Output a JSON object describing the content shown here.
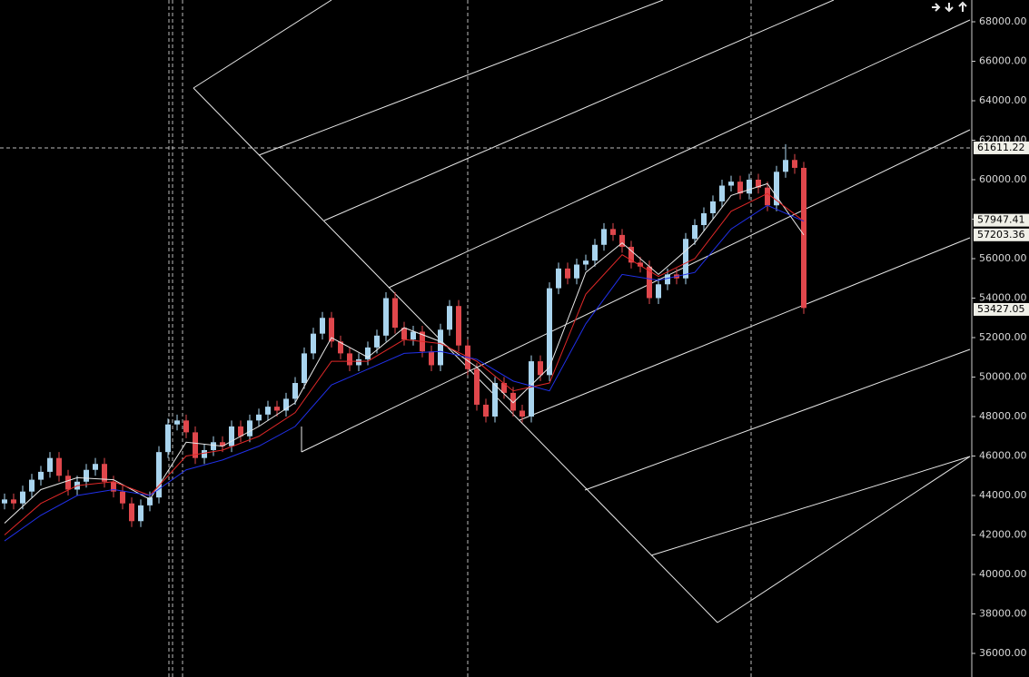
{
  "chart_data": {
    "type": "candlestick",
    "up_color": "#a9d4ee",
    "down_color": "#e0474c",
    "ylim": [
      34805,
      69103
    ],
    "yticks": [
      {
        "value": 36000,
        "label": "36000.00"
      },
      {
        "value": 38000,
        "label": "38000.00"
      },
      {
        "value": 40000,
        "label": "40000.00"
      },
      {
        "value": 42000,
        "label": "42000.00"
      },
      {
        "value": 44000,
        "label": "44000.00"
      },
      {
        "value": 46000,
        "label": "46000.00"
      },
      {
        "value": 48000,
        "label": "48000.00"
      },
      {
        "value": 50000,
        "label": "50000.00"
      },
      {
        "value": 52000,
        "label": "52000.00"
      },
      {
        "value": 54000,
        "label": "54000.00"
      },
      {
        "value": 56000,
        "label": "56000.00"
      },
      {
        "value": 58000,
        "label": "58000.00"
      },
      {
        "value": 60000,
        "label": "60000.00"
      },
      {
        "value": 62000,
        "label": "62000.00"
      },
      {
        "value": 64000,
        "label": "64000.00"
      },
      {
        "value": 66000,
        "label": "66000.00"
      },
      {
        "value": 68000,
        "label": "68000.00"
      }
    ],
    "price_tags": [
      61611.22,
      57947.41,
      57203.36,
      53427.05
    ],
    "open": [
      43600,
      43800,
      43600,
      44200,
      44800,
      45200,
      45900,
      45000,
      44300,
      44700,
      45300,
      45600,
      44700,
      44200,
      43600,
      42700,
      43500,
      43900,
      46200,
      47600,
      47800,
      47200,
      45900,
      46300,
      46700,
      46500,
      47500,
      47000,
      47800,
      48100,
      48500,
      48300,
      48900,
      49700,
      51200,
      52200,
      53000,
      51800,
      51200,
      50600,
      50900,
      51500,
      52100,
      54000,
      52500,
      51900,
      52300,
      51300,
      50600,
      52400,
      53600,
      51600,
      50400,
      48600,
      48000,
      49700,
      49200,
      48300,
      48000,
      50800,
      50100,
      54500,
      55500,
      55000,
      55700,
      55900,
      56700,
      57500,
      57200,
      56600,
      55800,
      55600,
      54000,
      54700,
      55200,
      55000,
      57000,
      57700,
      58300,
      58900,
      59700,
      59900,
      59300,
      60000,
      59600,
      58700,
      60400,
      61000,
      60600
    ],
    "high": [
      44100,
      44100,
      44500,
      45100,
      45500,
      46200,
      46200,
      45300,
      45000,
      45600,
      45900,
      45900,
      45000,
      44500,
      43900,
      43800,
      44200,
      46500,
      47900,
      48100,
      48100,
      47500,
      46600,
      47000,
      47000,
      47800,
      47800,
      48100,
      48400,
      48800,
      48800,
      49200,
      50000,
      51500,
      52500,
      53300,
      53300,
      52100,
      51500,
      51200,
      51800,
      52400,
      54300,
      54300,
      52800,
      52600,
      52600,
      51600,
      52700,
      53900,
      53900,
      51900,
      50700,
      48900,
      50000,
      50000,
      49500,
      48600,
      51100,
      51100,
      54800,
      55800,
      55800,
      56000,
      56200,
      57000,
      57800,
      57800,
      57500,
      56900,
      56100,
      55900,
      55000,
      55500,
      55500,
      57300,
      58000,
      58600,
      59200,
      60000,
      60200,
      60200,
      60300,
      60300,
      59900,
      60700,
      61800,
      61300,
      60900
    ],
    "low": [
      43300,
      43300,
      43300,
      43900,
      44500,
      44900,
      44700,
      44000,
      44000,
      44400,
      45000,
      44400,
      43900,
      43300,
      42400,
      42400,
      43200,
      43600,
      45900,
      47300,
      46900,
      45600,
      45600,
      46000,
      46200,
      46200,
      46700,
      46700,
      47500,
      47800,
      48000,
      48000,
      48600,
      49400,
      50900,
      51900,
      51500,
      50900,
      50300,
      50300,
      50600,
      51200,
      51800,
      52200,
      51600,
      51600,
      51000,
      50300,
      50300,
      52100,
      51300,
      50100,
      48300,
      47700,
      47700,
      48900,
      48000,
      47700,
      47700,
      49800,
      49800,
      54200,
      54700,
      54700,
      55400,
      55600,
      56400,
      56900,
      56300,
      55500,
      55300,
      53700,
      53700,
      54400,
      54700,
      54700,
      56700,
      57400,
      58000,
      58600,
      59400,
      59000,
      59000,
      59300,
      58400,
      58400,
      60100,
      60300,
      53200
    ],
    "close": [
      43800,
      43600,
      44200,
      44800,
      45200,
      45900,
      45000,
      44300,
      44700,
      45300,
      45600,
      44700,
      44200,
      43600,
      42700,
      43500,
      43900,
      46200,
      47600,
      47800,
      47200,
      45900,
      46300,
      46700,
      46500,
      47500,
      47000,
      47800,
      48100,
      48500,
      48300,
      48900,
      49700,
      51200,
      52200,
      53000,
      51800,
      51200,
      50600,
      50900,
      51500,
      52100,
      54000,
      52500,
      51900,
      52300,
      51300,
      50600,
      52400,
      53600,
      51600,
      50400,
      48600,
      48000,
      49700,
      49200,
      48300,
      48000,
      50800,
      50100,
      54500,
      55500,
      55000,
      55700,
      55900,
      56700,
      57500,
      57200,
      56600,
      55800,
      55600,
      54000,
      54700,
      55200,
      55000,
      57000,
      57700,
      58300,
      58900,
      59700,
      59900,
      59300,
      60000,
      59600,
      58700,
      60400,
      61000,
      60600,
      53500
    ],
    "ma_lines": [
      {
        "color": "#e8e8e8",
        "x": [
          0,
          4,
          8,
          12,
          16,
          20,
          24,
          28,
          32,
          36,
          40,
          44,
          48,
          52,
          56,
          60,
          64,
          68,
          72,
          76,
          80,
          84,
          88
        ],
        "values": [
          42600,
          44300,
          44900,
          44800,
          43800,
          46700,
          46500,
          47500,
          48700,
          52000,
          51000,
          52500,
          51800,
          50500,
          48700,
          50500,
          55300,
          56800,
          55200,
          56800,
          59200,
          59800,
          57200
        ]
      },
      {
        "color": "#e02828",
        "x": [
          0,
          4,
          8,
          12,
          16,
          20,
          24,
          28,
          32,
          36,
          40,
          44,
          48,
          52,
          56,
          60,
          64,
          68,
          72,
          76,
          80,
          84,
          88
        ],
        "values": [
          42000,
          43600,
          44500,
          44700,
          44000,
          46000,
          46300,
          47000,
          48200,
          50800,
          50800,
          51900,
          51700,
          50800,
          49300,
          49700,
          54200,
          56200,
          55100,
          56000,
          58400,
          59300,
          57900
        ]
      },
      {
        "color": "#2030e8",
        "x": [
          0,
          4,
          8,
          12,
          16,
          20,
          24,
          28,
          32,
          36,
          40,
          44,
          48,
          52,
          56,
          60,
          64,
          68,
          72,
          76,
          80,
          84,
          88
        ],
        "values": [
          41700,
          43000,
          44000,
          44300,
          44000,
          45300,
          45800,
          46500,
          47500,
          49600,
          50400,
          51200,
          51300,
          50900,
          49800,
          49300,
          52700,
          55200,
          54900,
          55300,
          57500,
          58700,
          57900
        ]
      }
    ]
  }
}
